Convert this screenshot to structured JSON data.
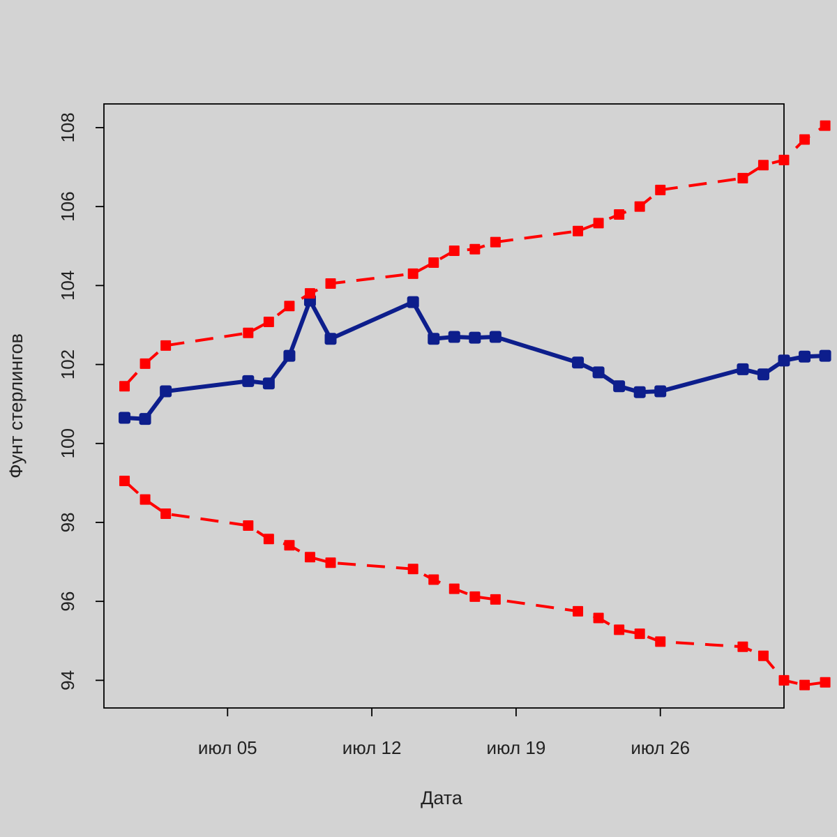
{
  "chart_data": {
    "type": "line",
    "xlabel": "Дата",
    "ylabel": "Фунт стерлингов",
    "x_ticks": [
      {
        "value": "2023-07-05",
        "label": "июл 05"
      },
      {
        "value": "2023-07-12",
        "label": "июл 12"
      },
      {
        "value": "2023-07-19",
        "label": "июл 19"
      },
      {
        "value": "2023-07-26",
        "label": "июл 26"
      }
    ],
    "y_ticks": [
      94,
      96,
      98,
      100,
      102,
      104,
      106,
      108
    ],
    "xlim": [
      "2023-06-29",
      "2023-08-01"
    ],
    "ylim": [
      93.3,
      108.6
    ],
    "grid": false,
    "x": [
      "2023-06-30",
      "2023-07-01",
      "2023-07-02",
      "2023-07-06",
      "2023-07-07",
      "2023-07-08",
      "2023-07-09",
      "2023-07-10",
      "2023-07-14",
      "2023-07-15",
      "2023-07-16",
      "2023-07-17",
      "2023-07-18",
      "2023-07-22",
      "2023-07-23",
      "2023-07-24",
      "2023-07-25",
      "2023-07-26",
      "2023-07-30",
      "2023-07-31",
      "2023-08-01",
      "2023-08-02",
      "2023-08-03"
    ],
    "series": [
      {
        "color": "#0d1e8c",
        "style": "solid",
        "values": [
          100.65,
          100.62,
          101.32,
          101.58,
          101.52,
          102.22,
          103.62,
          102.65,
          103.58,
          102.65,
          102.7,
          102.68,
          102.7,
          102.05,
          101.8,
          101.45,
          101.3,
          101.32,
          101.88,
          101.75,
          102.1,
          102.2,
          102.22
        ]
      },
      {
        "color": "#ff0000",
        "style": "dashed",
        "values": [
          101.45,
          102.02,
          102.48,
          102.8,
          103.08,
          103.48,
          103.8,
          104.05,
          104.3,
          104.58,
          104.88,
          104.92,
          105.1,
          105.38,
          105.58,
          105.8,
          106.0,
          106.42,
          106.72,
          107.05,
          107.18,
          107.7,
          108.05
        ]
      },
      {
        "color": "#ff0000",
        "style": "dashed",
        "values": [
          99.05,
          98.58,
          98.22,
          97.92,
          97.58,
          97.42,
          97.12,
          96.98,
          96.82,
          96.55,
          96.32,
          96.12,
          96.05,
          95.75,
          95.58,
          95.28,
          95.18,
          94.98,
          94.85,
          94.62,
          94.0,
          93.88,
          93.95
        ]
      }
    ]
  }
}
